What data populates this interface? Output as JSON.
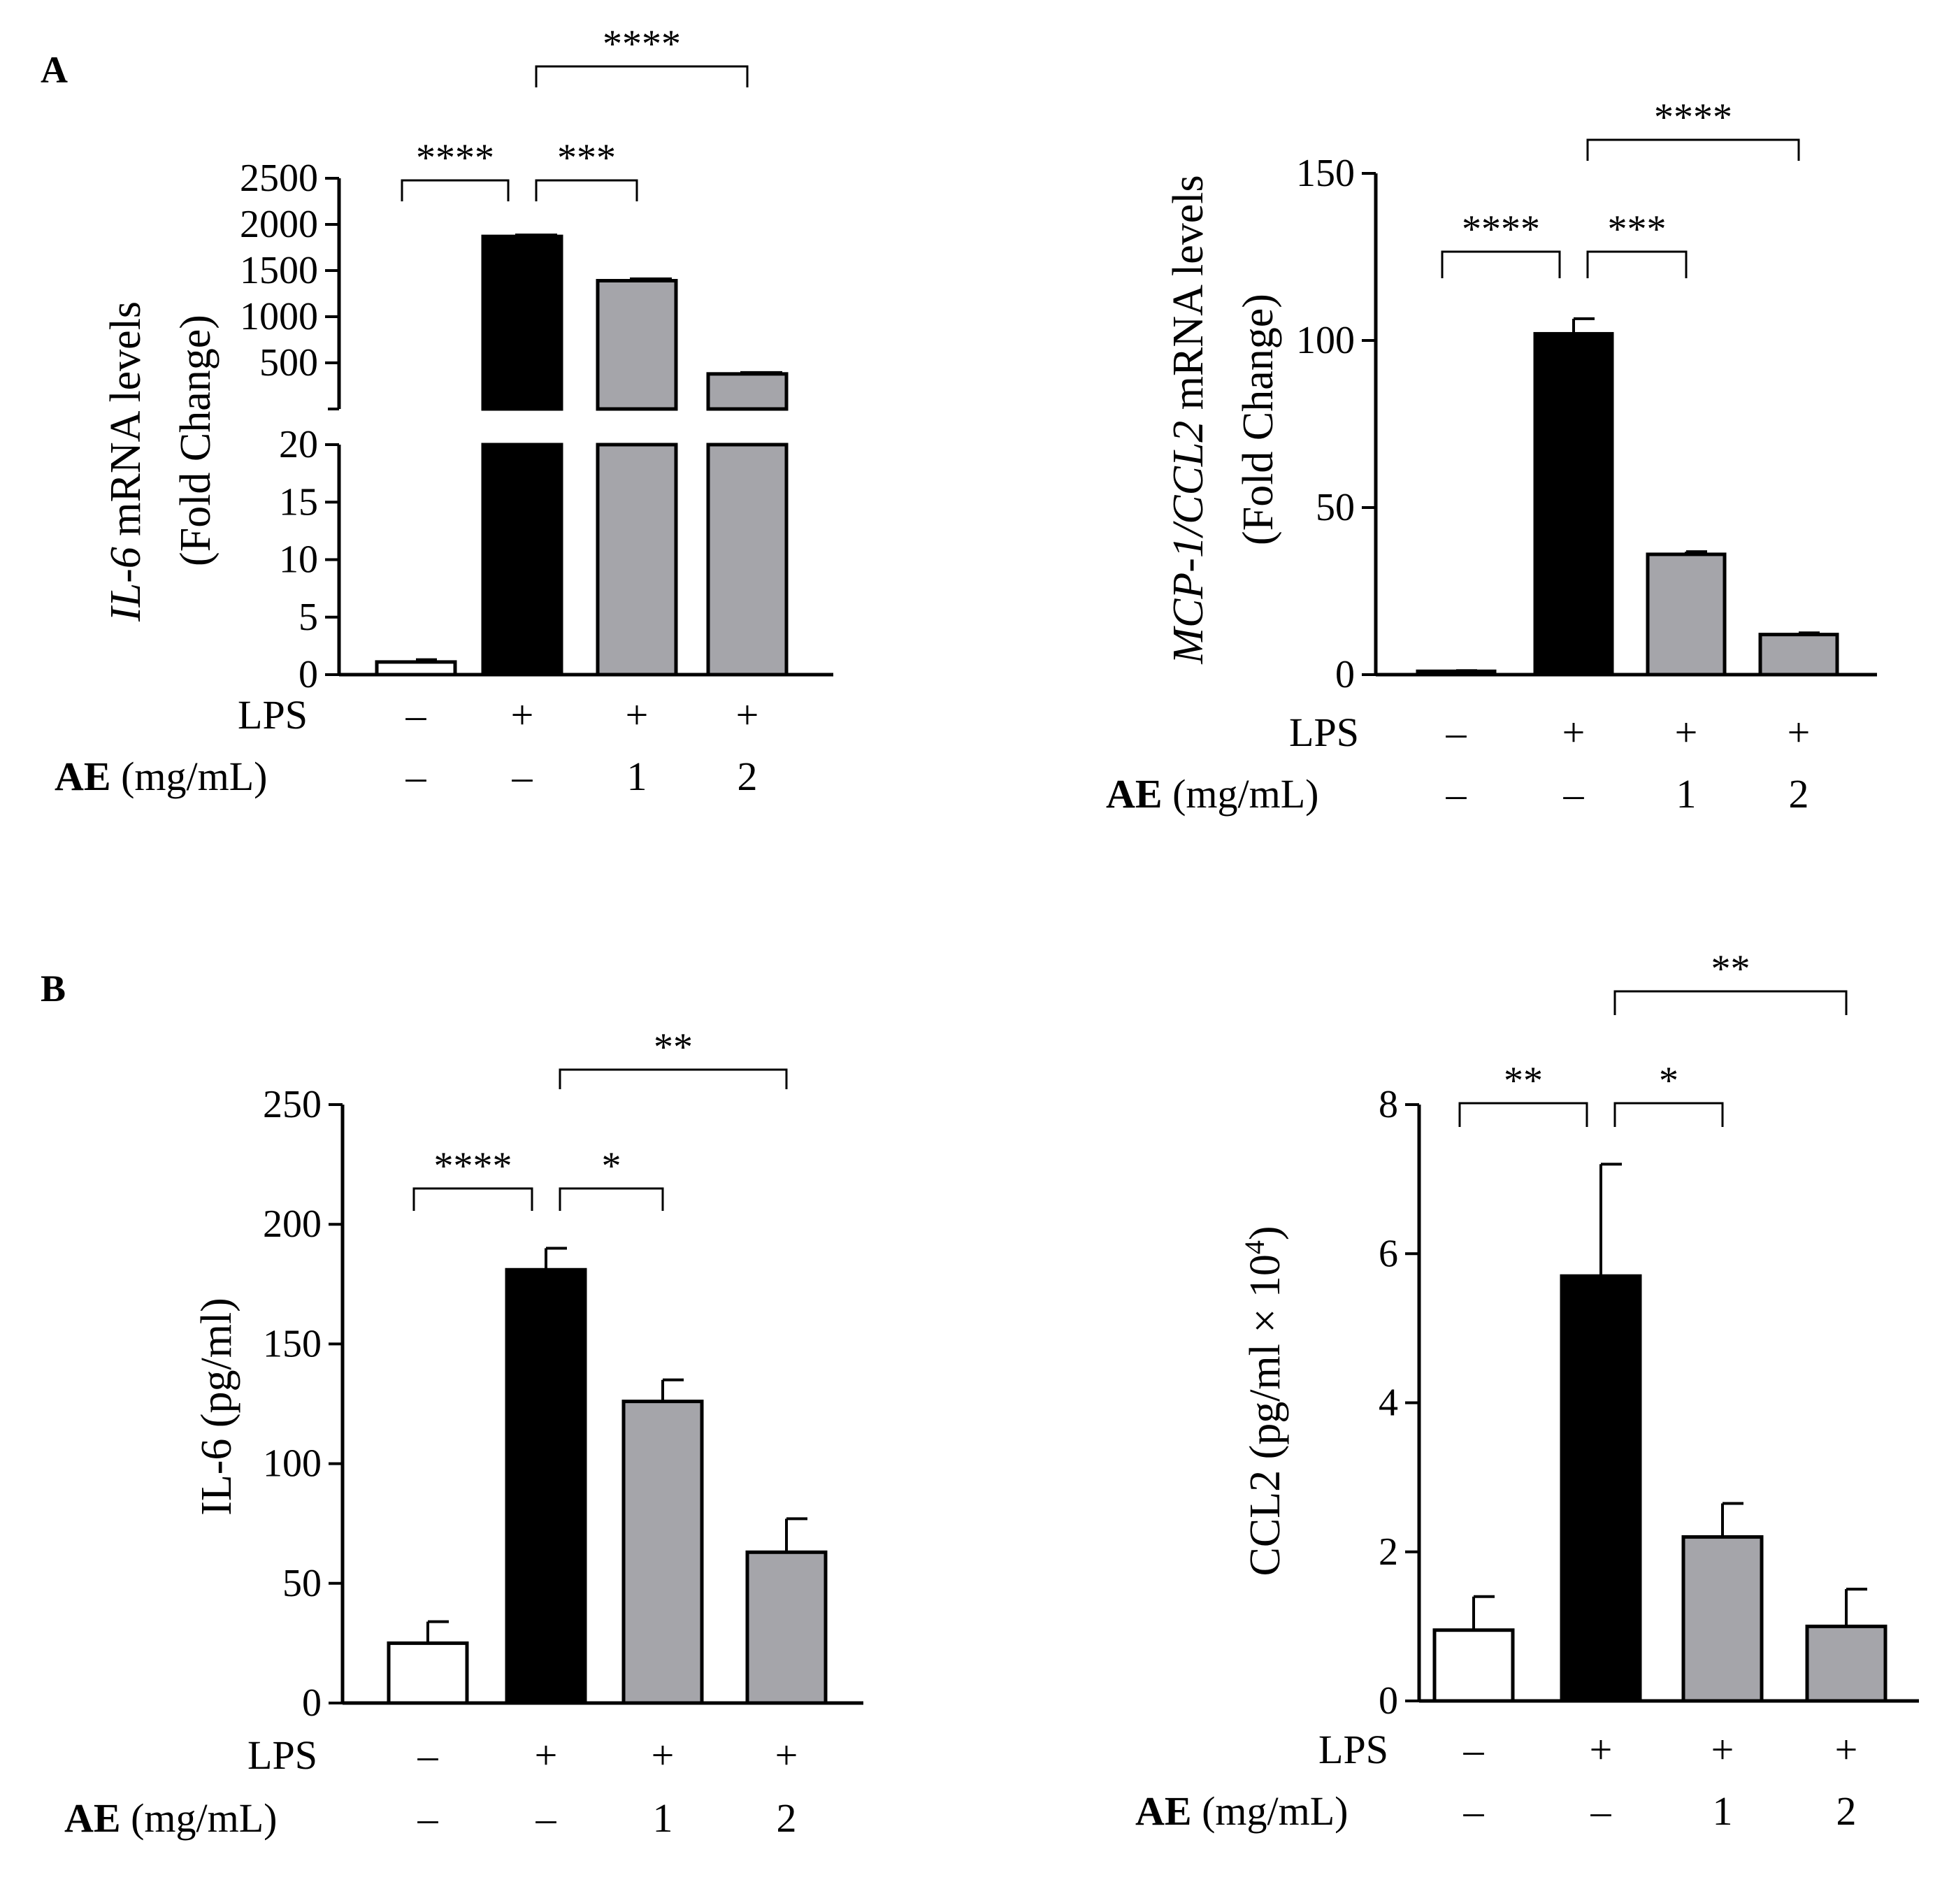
{
  "panel_labels": [
    "A",
    "B"
  ],
  "treatment_rows": {
    "lps_label": "LPS",
    "ae_label_bold": "AE",
    "ae_label_unit": "(mg/mL)",
    "lps_values": [
      "–",
      "+",
      "+",
      "+"
    ],
    "ae_values": [
      "–",
      "–",
      "1",
      "2"
    ]
  },
  "colors": {
    "control": "#ffffff",
    "lps": "#000000",
    "ae": "#a5a5aa",
    "axis": "#000000"
  },
  "chart_data": [
    {
      "id": "il6-mrna",
      "type": "bar",
      "panel": "A",
      "title": "",
      "ylabel_italic": "IL-6",
      "ylabel_rest": " mRNA levels",
      "ylabel_line2": "(Fold Change)",
      "xlabel": "",
      "broken_axis": true,
      "lower_range": [
        0,
        20
      ],
      "upper_range": [
        0,
        2500
      ],
      "lower_ticks": [
        0,
        5,
        10,
        15,
        20
      ],
      "upper_ticks": [
        500,
        1000,
        1500,
        2000,
        2500
      ],
      "categories": [
        "Control",
        "LPS",
        "LPS + AE 1",
        "LPS + AE 2"
      ],
      "values": [
        1.1,
        1870,
        1390,
        380
      ],
      "errors": [
        0.2,
        15,
        20,
        15
      ],
      "significance": [
        {
          "from": 0,
          "to": 1,
          "label": "****",
          "level": 1
        },
        {
          "from": 1,
          "to": 2,
          "label": "***",
          "level": 1
        },
        {
          "from": 1,
          "to": 3,
          "label": "****",
          "level": 2
        }
      ]
    },
    {
      "id": "ccl2-mrna",
      "type": "bar",
      "panel": "A",
      "title": "",
      "ylabel_italic": "MCP-1/CCL2",
      "ylabel_rest": " mRNA levels",
      "ylabel_line2": "(Fold Change)",
      "xlabel": "",
      "ylim": [
        0,
        150
      ],
      "ticks": [
        0,
        50,
        100,
        150
      ],
      "categories": [
        "Control",
        "LPS",
        "LPS + AE 1",
        "LPS + AE 2"
      ],
      "values": [
        1,
        102,
        36,
        12
      ],
      "errors": [
        0.2,
        4.5,
        0.8,
        0.5
      ],
      "significance": [
        {
          "from": 0,
          "to": 1,
          "label": "****",
          "level": 1
        },
        {
          "from": 1,
          "to": 2,
          "label": "***",
          "level": 1
        },
        {
          "from": 1,
          "to": 3,
          "label": "****",
          "level": 2
        }
      ]
    },
    {
      "id": "il6-protein",
      "type": "bar",
      "panel": "B",
      "title": "",
      "ylabel": "IL-6  (pg/ml)",
      "xlabel": "",
      "ylim": [
        0,
        250
      ],
      "ticks": [
        0,
        50,
        100,
        150,
        200,
        250
      ],
      "categories": [
        "Control",
        "LPS",
        "LPS + AE 1",
        "LPS + AE 2"
      ],
      "values": [
        25,
        181,
        126,
        63
      ],
      "errors": [
        9,
        9,
        9,
        14
      ],
      "significance": [
        {
          "from": 0,
          "to": 1,
          "label": "****",
          "level": 1
        },
        {
          "from": 1,
          "to": 2,
          "label": "*",
          "level": 1
        },
        {
          "from": 1,
          "to": 3,
          "label": "**",
          "level": 2
        }
      ]
    },
    {
      "id": "ccl2-protein",
      "type": "bar",
      "panel": "B",
      "title": "",
      "ylabel_main": "CCL2  (pg/ml × 10",
      "ylabel_sup": "4",
      "ylabel_close": ")",
      "xlabel": "",
      "ylim": [
        0,
        8
      ],
      "ticks": [
        0,
        2,
        4,
        6,
        8
      ],
      "categories": [
        "Control",
        "LPS",
        "LPS + AE 1",
        "LPS + AE 2"
      ],
      "values": [
        0.95,
        5.7,
        2.2,
        1.0
      ],
      "errors": [
        0.45,
        1.5,
        0.45,
        0.5
      ],
      "significance": [
        {
          "from": 0,
          "to": 1,
          "label": "**",
          "level": 1
        },
        {
          "from": 1,
          "to": 2,
          "label": "*",
          "level": 1
        },
        {
          "from": 1,
          "to": 3,
          "label": "**",
          "level": 2
        }
      ]
    }
  ]
}
